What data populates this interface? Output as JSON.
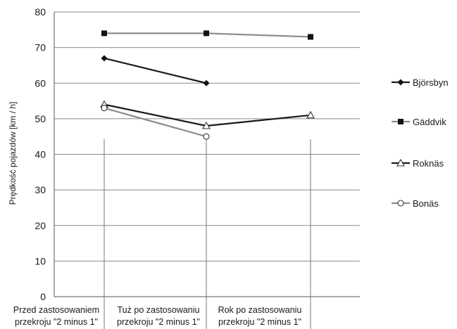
{
  "chart_data": {
    "type": "line",
    "title": "",
    "xlabel": "",
    "ylabel": "Prędkość pojazdów  [km / h]",
    "ylim": [
      0,
      80
    ],
    "yticks": [
      0,
      10,
      20,
      30,
      40,
      50,
      60,
      70,
      80
    ],
    "grid": true,
    "legend_position": "right",
    "categories": [
      [
        "Przed zastosowaniem",
        "przekroju \"2 minus 1\""
      ],
      [
        "Tuż po zastosowaniu",
        "przekroju \"2 minus 1\""
      ],
      [
        "Rok po zastosowaniu",
        "przekroju \"2 minus 1\""
      ]
    ],
    "series": [
      {
        "name": "Björsbyn",
        "values": [
          67,
          60,
          null
        ],
        "color": "#1a1a1a",
        "marker": "diamond"
      },
      {
        "name": "Gäddvik",
        "values": [
          74,
          74,
          73
        ],
        "color": "#8c8c8c",
        "marker": "square"
      },
      {
        "name": "Roknäs",
        "values": [
          54,
          48,
          51
        ],
        "color": "#1a1a1a",
        "marker": "triangle"
      },
      {
        "name": "Bonäs",
        "values": [
          53,
          45,
          null
        ],
        "color": "#8c8c8c",
        "marker": "circle"
      }
    ]
  }
}
